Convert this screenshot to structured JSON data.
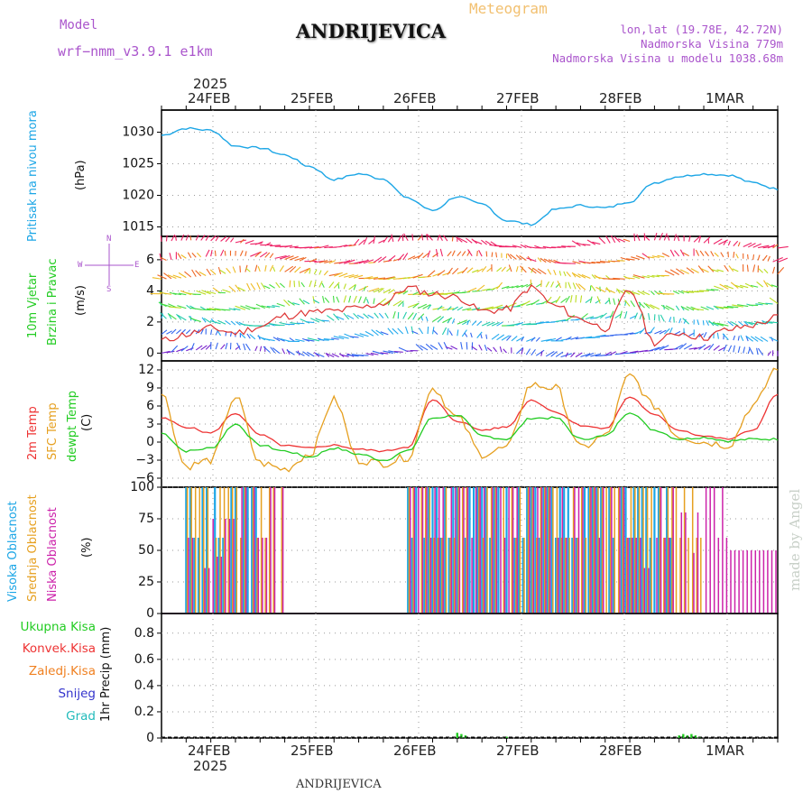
{
  "header": {
    "model_label": "Model",
    "model_name": "wrf−nmm_v3.9.1  e1km",
    "station": "ANDRIJEVICA",
    "product": "Meteogram",
    "coords": "lon,lat (19.78E, 42.72N)",
    "elevation": "Nadmorska Visina 779m",
    "model_elevation": "Nadmorska Visina u modelu 1038.68m",
    "watermark": "made by Angel",
    "footer_station": "ANDRIJEVICA"
  },
  "time_axis": {
    "year": "2025",
    "days": [
      "24FEB",
      "25FEB",
      "26FEB",
      "27FEB",
      "28FEB",
      "1MAR"
    ]
  },
  "colors": {
    "pressure": "#1ca6e6",
    "temp2m": "#ee3333",
    "sfc": "#e6a020",
    "dewpt": "#22cc22",
    "high_cloud": "#1ca6e6",
    "mid_cloud": "#e6a020",
    "low_cloud": "#cc22aa",
    "precip_total": "#22cc22",
    "precip_conv": "#ee3333",
    "precip_strat": "#f08020",
    "snow": "#3333cc",
    "hail": "#22bbbb",
    "axis_purple": "#aa55cc"
  },
  "panels": {
    "pressure": {
      "ylabel1": "Pritisak na nivou mora",
      "unit": "(hPa)",
      "ticks": [
        "1030",
        "1025",
        "1020",
        "1015"
      ]
    },
    "wind": {
      "ylabel1": "10m Vjetar",
      "ylabel2": "Brzina i Pravac",
      "unit": "(m/s)",
      "ticks": [
        "6",
        "4",
        "2",
        "0"
      ],
      "compass": {
        "n": "N",
        "s": "S",
        "w": "W",
        "e": "E"
      }
    },
    "temp": {
      "ylabel1": "2m Temp",
      "ylabel2": "SFC Temp",
      "ylabel3": "dewpt Temp",
      "unit": "(C)",
      "ticks": [
        "12",
        "9",
        "6",
        "3",
        "0",
        "−3",
        "−6"
      ]
    },
    "cloud": {
      "ylabel1": "Visoka Oblacnost",
      "ylabel2": "Srednja Oblacnost",
      "ylabel3": "Niska Oblacnost",
      "unit": "(%)",
      "ticks": [
        "100",
        "75",
        "50",
        "25",
        "0"
      ]
    },
    "precip": {
      "ylabel": "1hr Precip (mm)",
      "ticks": [
        "0.8",
        "0.6",
        "0.4",
        "0.2",
        "0"
      ],
      "legend": [
        "Ukupna Kisa",
        "Konvek.Kisa",
        "Zaledj.Kisa",
        "Snijeg",
        "Grad"
      ]
    }
  },
  "chart_data": [
    {
      "type": "line",
      "title": "Pritisak na nivou mora",
      "ylabel": "(hPa)",
      "ylim": [
        1013.5,
        1033.5
      ],
      "x": [
        0,
        6,
        12,
        18,
        24,
        30,
        36,
        42,
        48,
        54,
        60,
        66,
        72,
        78,
        84,
        90,
        96,
        102,
        108,
        114,
        120,
        126,
        132,
        138,
        144,
        150
      ],
      "series": [
        {
          "name": "Pritisak na nivou mora",
          "values": [
            1029.5,
            1030.6,
            1030.3,
            1027.8,
            1027.5,
            1026.4,
            1024.6,
            1022.5,
            1023.4,
            1022.6,
            1019.5,
            1017.6,
            1019.8,
            1018.6,
            1016.0,
            1015.4,
            1017.8,
            1018.4,
            1018.0,
            1019.0,
            1022.0,
            1023.0,
            1023.4,
            1023.2,
            1022.0,
            1021.0
          ]
        }
      ]
    },
    {
      "type": "line",
      "title": "10m Vjetar Brzina i Pravac",
      "ylabel": "(m/s)",
      "ylim": [
        -0.5,
        7.5
      ],
      "x": [
        0,
        6,
        12,
        18,
        24,
        30,
        36,
        42,
        48,
        54,
        60,
        66,
        72,
        78,
        84,
        90,
        96,
        102,
        108,
        114,
        120,
        126,
        132,
        138,
        144,
        150
      ],
      "series": [
        {
          "name": "10m Vjetar",
          "values": [
            0.8,
            1.2,
            1.6,
            1.3,
            1.7,
            2.4,
            2.6,
            2.7,
            2.9,
            3.2,
            4.2,
            3.8,
            3.6,
            2.7,
            2.8,
            4.2,
            3.0,
            2.2,
            1.6,
            4.0,
            0.7,
            1.3,
            1.0,
            1.5,
            1.8,
            2.3
          ]
        }
      ]
    },
    {
      "type": "line",
      "title": "2m Temp / SFC Temp / dewpt Temp",
      "ylabel": "(C)",
      "ylim": [
        -7.5,
        13.5
      ],
      "x": [
        0,
        6,
        12,
        18,
        24,
        30,
        36,
        42,
        48,
        54,
        60,
        66,
        72,
        78,
        84,
        90,
        96,
        102,
        108,
        114,
        120,
        126,
        132,
        138,
        144,
        150
      ],
      "series": [
        {
          "name": "2m Temp",
          "values": [
            4.0,
            2.5,
            1.5,
            4.8,
            1.2,
            -0.6,
            -1.0,
            -0.5,
            -1.2,
            -1.5,
            -0.8,
            7.0,
            3.5,
            2.0,
            2.5,
            7.0,
            5.0,
            2.8,
            2.2,
            7.5,
            4.5,
            2.0,
            1.0,
            0.5,
            2.0,
            8.0
          ]
        },
        {
          "name": "SFC Temp",
          "values": [
            8.0,
            -4.0,
            -3.0,
            7.5,
            -3.5,
            -4.5,
            -2.0,
            7.0,
            -3.0,
            -3.5,
            -2.5,
            9.0,
            4.0,
            -2.0,
            -1.0,
            9.5,
            9.0,
            -1.0,
            1.0,
            11.0,
            6.0,
            1.0,
            0.0,
            -0.5,
            6.0,
            12.5
          ]
        },
        {
          "name": "dewpt Temp",
          "values": [
            1.5,
            -1.5,
            -1.0,
            3.0,
            -0.5,
            -1.5,
            -2.5,
            -1.0,
            -2.0,
            -3.0,
            -1.5,
            4.0,
            4.5,
            1.0,
            0.5,
            4.0,
            4.0,
            0.5,
            1.0,
            5.0,
            2.0,
            0.5,
            0.8,
            0.2,
            0.5,
            0.5
          ]
        }
      ]
    },
    {
      "type": "bar",
      "title": "Visoka / Srednja / Niska Oblacnost",
      "ylabel": "(%)",
      "ylim": [
        0,
        100
      ],
      "x": [
        0,
        6,
        12,
        18,
        24,
        30,
        36,
        42,
        48,
        54,
        60,
        66,
        72,
        78,
        84,
        90,
        96,
        102,
        108,
        114,
        120,
        126,
        132,
        138,
        144,
        150
      ],
      "series": [
        {
          "name": "Visoka Oblacnost",
          "values": [
            0,
            100,
            100,
            100,
            0,
            0,
            0,
            0,
            0,
            0,
            100,
            100,
            100,
            100,
            100,
            100,
            100,
            100,
            100,
            100,
            100,
            0,
            0,
            0,
            0,
            100
          ]
        },
        {
          "name": "Srednja Oblacnost",
          "values": [
            0,
            100,
            100,
            100,
            100,
            0,
            0,
            0,
            0,
            0,
            100,
            100,
            100,
            100,
            100,
            100,
            100,
            100,
            100,
            100,
            100,
            100,
            0,
            0,
            0,
            100
          ]
        },
        {
          "name": "Niska Oblacnost",
          "values": [
            0,
            60,
            75,
            100,
            100,
            0,
            0,
            0,
            0,
            0,
            100,
            100,
            100,
            100,
            100,
            100,
            100,
            100,
            100,
            60,
            100,
            80,
            100,
            50,
            50,
            100
          ]
        }
      ]
    },
    {
      "type": "bar",
      "title": "1hr Precip",
      "ylabel": "1hr Precip (mm)",
      "ylim": [
        0,
        0.95
      ],
      "x": [
        72,
        73,
        74,
        84,
        126,
        127,
        128,
        129,
        130,
        131
      ],
      "series": [
        {
          "name": "Ukupna Kisa",
          "values": [
            0.04,
            0.03,
            0.02,
            0.01,
            0.02,
            0.03,
            0.02,
            0.03,
            0.02,
            0.01
          ]
        }
      ]
    }
  ]
}
